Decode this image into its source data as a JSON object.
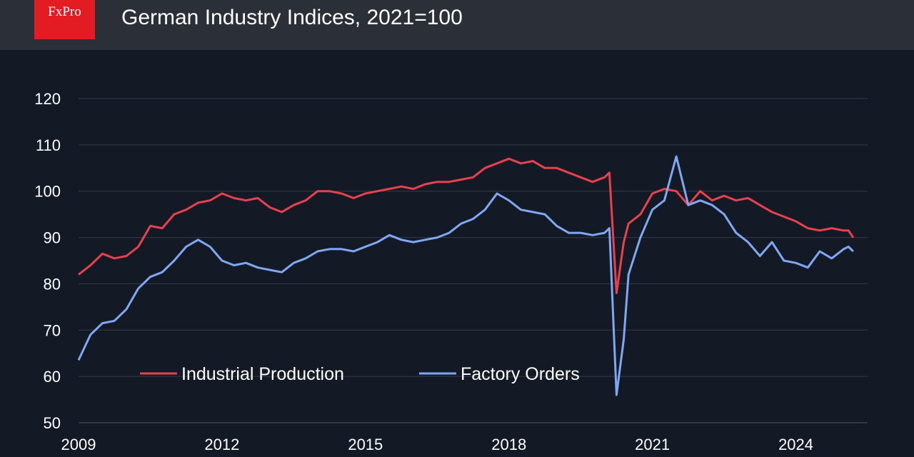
{
  "header": {
    "brand": "FxPro",
    "title": "German Industry Indices, 2021=100"
  },
  "chart_data": {
    "type": "line",
    "title": "German Industry Indices, 2021=100",
    "xlabel": "",
    "ylabel": "",
    "xlim": [
      2009.0,
      2025.5
    ],
    "ylim": [
      50,
      120
    ],
    "yticks": [
      50,
      60,
      70,
      80,
      90,
      100,
      110,
      120
    ],
    "xticks": [
      2009,
      2012,
      2015,
      2018,
      2021,
      2024
    ],
    "grid": true,
    "legend_position": "bottom-left",
    "colors": {
      "background": "#131a26",
      "grid": "#343b48",
      "production": "#e8404c",
      "orders": "#7fa7f2"
    },
    "series": [
      {
        "name": "Industrial Production",
        "key": "production",
        "points": [
          [
            2009.0,
            82
          ],
          [
            2009.25,
            84
          ],
          [
            2009.5,
            86.5
          ],
          [
            2009.75,
            85.5
          ],
          [
            2010.0,
            86
          ],
          [
            2010.25,
            88
          ],
          [
            2010.5,
            92.5
          ],
          [
            2010.75,
            92
          ],
          [
            2011.0,
            95
          ],
          [
            2011.25,
            96
          ],
          [
            2011.5,
            97.5
          ],
          [
            2011.75,
            98
          ],
          [
            2012.0,
            99.5
          ],
          [
            2012.25,
            98.5
          ],
          [
            2012.5,
            98
          ],
          [
            2012.75,
            98.5
          ],
          [
            2013.0,
            96.5
          ],
          [
            2013.25,
            95.5
          ],
          [
            2013.5,
            97
          ],
          [
            2013.75,
            98
          ],
          [
            2014.0,
            100
          ],
          [
            2014.25,
            100
          ],
          [
            2014.5,
            99.5
          ],
          [
            2014.75,
            98.5
          ],
          [
            2015.0,
            99.5
          ],
          [
            2015.25,
            100
          ],
          [
            2015.5,
            100.5
          ],
          [
            2015.75,
            101
          ],
          [
            2016.0,
            100.5
          ],
          [
            2016.25,
            101.5
          ],
          [
            2016.5,
            102
          ],
          [
            2016.75,
            102
          ],
          [
            2017.0,
            102.5
          ],
          [
            2017.25,
            103
          ],
          [
            2017.5,
            105
          ],
          [
            2017.75,
            106
          ],
          [
            2018.0,
            107
          ],
          [
            2018.25,
            106
          ],
          [
            2018.5,
            106.5
          ],
          [
            2018.75,
            105
          ],
          [
            2019.0,
            105
          ],
          [
            2019.25,
            104
          ],
          [
            2019.5,
            103
          ],
          [
            2019.75,
            102
          ],
          [
            2020.0,
            103
          ],
          [
            2020.1,
            104
          ],
          [
            2020.25,
            78
          ],
          [
            2020.4,
            89
          ],
          [
            2020.5,
            93
          ],
          [
            2020.75,
            95
          ],
          [
            2021.0,
            99.5
          ],
          [
            2021.25,
            100.5
          ],
          [
            2021.5,
            100
          ],
          [
            2021.75,
            97
          ],
          [
            2022.0,
            100
          ],
          [
            2022.25,
            98
          ],
          [
            2022.5,
            99
          ],
          [
            2022.75,
            98
          ],
          [
            2023.0,
            98.5
          ],
          [
            2023.25,
            97
          ],
          [
            2023.5,
            95.5
          ],
          [
            2023.75,
            94.5
          ],
          [
            2024.0,
            93.5
          ],
          [
            2024.25,
            92
          ],
          [
            2024.5,
            91.5
          ],
          [
            2024.75,
            92
          ],
          [
            2025.0,
            91.5
          ],
          [
            2025.1,
            91.5
          ],
          [
            2025.2,
            90
          ]
        ]
      },
      {
        "name": "Factory Orders",
        "key": "orders",
        "points": [
          [
            2009.0,
            63.5
          ],
          [
            2009.25,
            69
          ],
          [
            2009.5,
            71.5
          ],
          [
            2009.75,
            72
          ],
          [
            2010.0,
            74.5
          ],
          [
            2010.25,
            79
          ],
          [
            2010.5,
            81.5
          ],
          [
            2010.75,
            82.5
          ],
          [
            2011.0,
            85
          ],
          [
            2011.25,
            88
          ],
          [
            2011.5,
            89.5
          ],
          [
            2011.75,
            88
          ],
          [
            2012.0,
            85
          ],
          [
            2012.25,
            84
          ],
          [
            2012.5,
            84.5
          ],
          [
            2012.75,
            83.5
          ],
          [
            2013.0,
            83
          ],
          [
            2013.25,
            82.5
          ],
          [
            2013.5,
            84.5
          ],
          [
            2013.75,
            85.5
          ],
          [
            2014.0,
            87
          ],
          [
            2014.25,
            87.5
          ],
          [
            2014.5,
            87.5
          ],
          [
            2014.75,
            87
          ],
          [
            2015.0,
            88
          ],
          [
            2015.25,
            89
          ],
          [
            2015.5,
            90.5
          ],
          [
            2015.75,
            89.5
          ],
          [
            2016.0,
            89
          ],
          [
            2016.25,
            89.5
          ],
          [
            2016.5,
            90
          ],
          [
            2016.75,
            91
          ],
          [
            2017.0,
            93
          ],
          [
            2017.25,
            94
          ],
          [
            2017.5,
            96
          ],
          [
            2017.75,
            99.5
          ],
          [
            2018.0,
            98
          ],
          [
            2018.25,
            96
          ],
          [
            2018.5,
            95.5
          ],
          [
            2018.75,
            95
          ],
          [
            2019.0,
            92.5
          ],
          [
            2019.25,
            91
          ],
          [
            2019.5,
            91
          ],
          [
            2019.75,
            90.5
          ],
          [
            2020.0,
            91
          ],
          [
            2020.1,
            92
          ],
          [
            2020.25,
            56
          ],
          [
            2020.4,
            68
          ],
          [
            2020.5,
            82
          ],
          [
            2020.75,
            90
          ],
          [
            2021.0,
            96
          ],
          [
            2021.25,
            98
          ],
          [
            2021.5,
            107.5
          ],
          [
            2021.75,
            97
          ],
          [
            2022.0,
            98
          ],
          [
            2022.25,
            97
          ],
          [
            2022.5,
            95
          ],
          [
            2022.75,
            91
          ],
          [
            2023.0,
            89
          ],
          [
            2023.25,
            86
          ],
          [
            2023.5,
            89
          ],
          [
            2023.75,
            85
          ],
          [
            2024.0,
            84.5
          ],
          [
            2024.25,
            83.5
          ],
          [
            2024.5,
            87
          ],
          [
            2024.75,
            85.5
          ],
          [
            2025.0,
            87.5
          ],
          [
            2025.1,
            88
          ],
          [
            2025.2,
            87
          ]
        ]
      }
    ]
  }
}
